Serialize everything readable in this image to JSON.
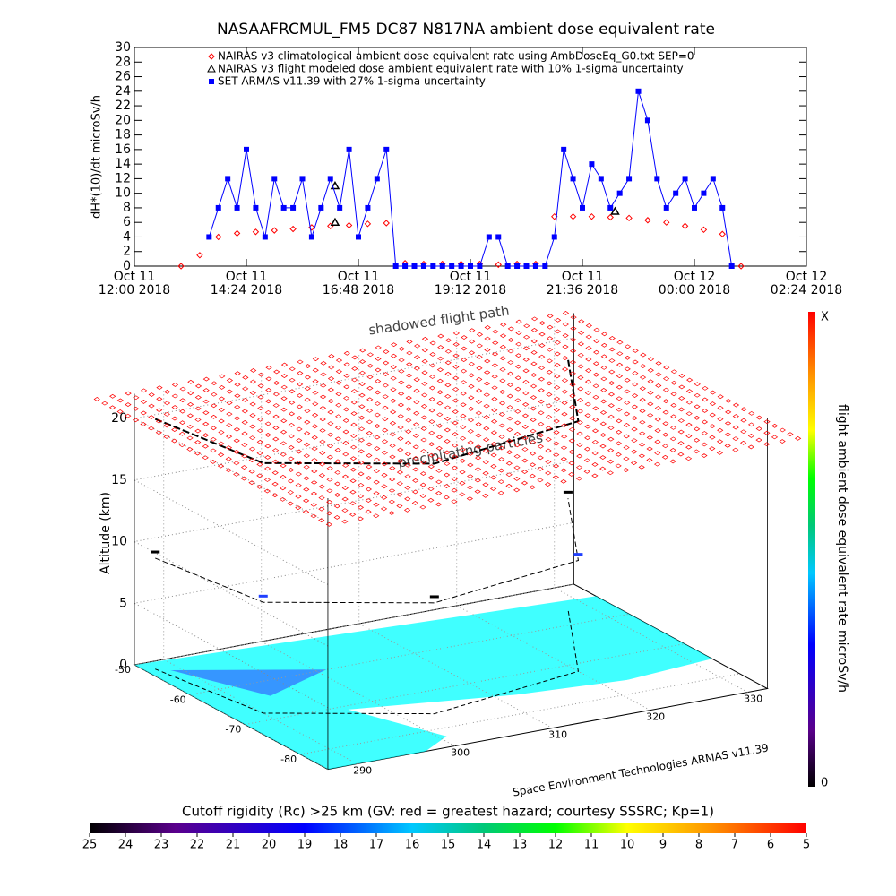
{
  "chart_data": [
    {
      "type": "line",
      "title": "NASAAFRCMUL_FM5 DC87 N817NA ambient dose equivalent rate",
      "y_label": "dH*(10)/dt microSv/h",
      "xlim": [
        0,
        14.4
      ],
      "xticks": [
        {
          "value": 0,
          "label": "Oct 11\n12:00 2018"
        },
        {
          "value": 2.4,
          "label": "Oct 11\n14:24 2018"
        },
        {
          "value": 4.8,
          "label": "Oct 11\n16:48 2018"
        },
        {
          "value": 7.2,
          "label": "Oct 11\n19:12 2018"
        },
        {
          "value": 9.6,
          "label": "Oct 11\n21:36 2018"
        },
        {
          "value": 12,
          "label": "Oct 12\n00:00 2018"
        },
        {
          "value": 14.4,
          "label": "Oct 12\n02:24 2018"
        }
      ],
      "ylim": [
        0,
        30
      ],
      "yticks": [
        0,
        2,
        4,
        6,
        8,
        10,
        12,
        14,
        16,
        18,
        20,
        22,
        24,
        26,
        28,
        30
      ],
      "series": [
        {
          "name": "NAIRAS v3 climatological ambient dose equivalent rate using AmbDoseEq_G0.txt SEP=0",
          "color": "#ff0000",
          "marker": "diamond",
          "x": [
            1.0,
            1.4,
            1.8,
            2.2,
            2.6,
            3.0,
            3.4,
            3.8,
            4.2,
            4.6,
            5.0,
            5.4,
            5.8,
            6.2,
            6.6,
            7.0,
            7.4,
            7.8,
            8.2,
            8.6,
            9.0,
            9.4,
            9.8,
            10.2,
            10.6,
            11.0,
            11.4,
            11.8,
            12.2,
            12.6,
            13.0
          ],
          "values": [
            0,
            1.5,
            4.0,
            4.5,
            4.7,
            4.9,
            5.1,
            5.3,
            5.5,
            5.6,
            5.8,
            5.9,
            0.4,
            0.3,
            0.3,
            0.3,
            0.3,
            0.2,
            0.3,
            0.3,
            6.8,
            6.8,
            6.8,
            6.7,
            6.6,
            6.3,
            6.0,
            5.5,
            5.0,
            4.4,
            0
          ]
        },
        {
          "name": "NAIRAS v3 flight modeled dose ambient equivalent rate with 10% 1-sigma uncertainty",
          "color": "#000000",
          "marker": "triangle",
          "x": [
            4.3,
            4.3,
            10.3
          ],
          "values": [
            11,
            6,
            7.5
          ]
        },
        {
          "name": "SET ARMAS v11.39 with 27% 1-sigma uncertainty",
          "color": "#0000ff",
          "marker": "square",
          "x": [
            1.6,
            1.8,
            2.0,
            2.2,
            2.4,
            2.6,
            2.8,
            3.0,
            3.2,
            3.4,
            3.6,
            3.8,
            4.0,
            4.2,
            4.4,
            4.6,
            4.8,
            5.0,
            5.2,
            5.4,
            5.6,
            5.8,
            6.0,
            6.2,
            6.4,
            6.6,
            6.8,
            7.0,
            7.2,
            7.4,
            7.6,
            7.8,
            8.0,
            8.2,
            8.4,
            8.6,
            8.8,
            9.0,
            9.2,
            9.4,
            9.6,
            9.8,
            10.0,
            10.2,
            10.4,
            10.6,
            10.8,
            11.0,
            11.2,
            11.4,
            11.6,
            11.8,
            12.0,
            12.2,
            12.4,
            12.6,
            12.8
          ],
          "values": [
            4,
            8,
            12,
            8,
            16,
            8,
            4,
            12,
            8,
            8,
            12,
            4,
            8,
            12,
            8,
            16,
            4,
            8,
            12,
            16,
            0,
            0,
            0,
            0,
            0,
            0,
            0,
            0,
            0,
            0,
            4,
            4,
            0,
            0,
            0,
            0,
            0,
            4,
            16,
            12,
            8,
            14,
            12,
            8,
            10,
            12,
            24,
            20,
            12,
            8,
            10,
            12,
            8,
            10,
            12,
            8,
            0
          ]
        }
      ]
    },
    {
      "type": "surface-3d",
      "annotations": [
        "shadowed flight path",
        "precipitating particles"
      ],
      "z_label": "Altitude (km)",
      "zlim": [
        0,
        22
      ],
      "zticks": [
        0,
        5,
        10,
        15,
        20
      ],
      "latlim": [
        -50,
        -85
      ],
      "latticks": [
        -50,
        -60,
        -70,
        -80
      ],
      "lonlim": [
        287,
        332
      ],
      "lonticks": [
        290,
        300,
        310,
        320,
        330
      ],
      "credit": "Space Environment Technologies ARMAS v11.39",
      "dose_colorbar": {
        "label": "flight ambient dose equivalent rate microSv/h",
        "top": "X",
        "bottom": 0
      },
      "cutoff_colorbar": {
        "title": "Cutoff rigidity (Rc) >25 km (GV: red = greatest hazard; courtesy SSSRC; Kp=1)",
        "lim": [
          25,
          5
        ],
        "ticks": [
          25,
          24,
          23,
          22,
          21,
          20,
          19,
          18,
          17,
          16,
          15,
          14,
          13,
          12,
          11,
          10,
          9,
          8,
          7,
          6,
          5
        ]
      }
    }
  ]
}
